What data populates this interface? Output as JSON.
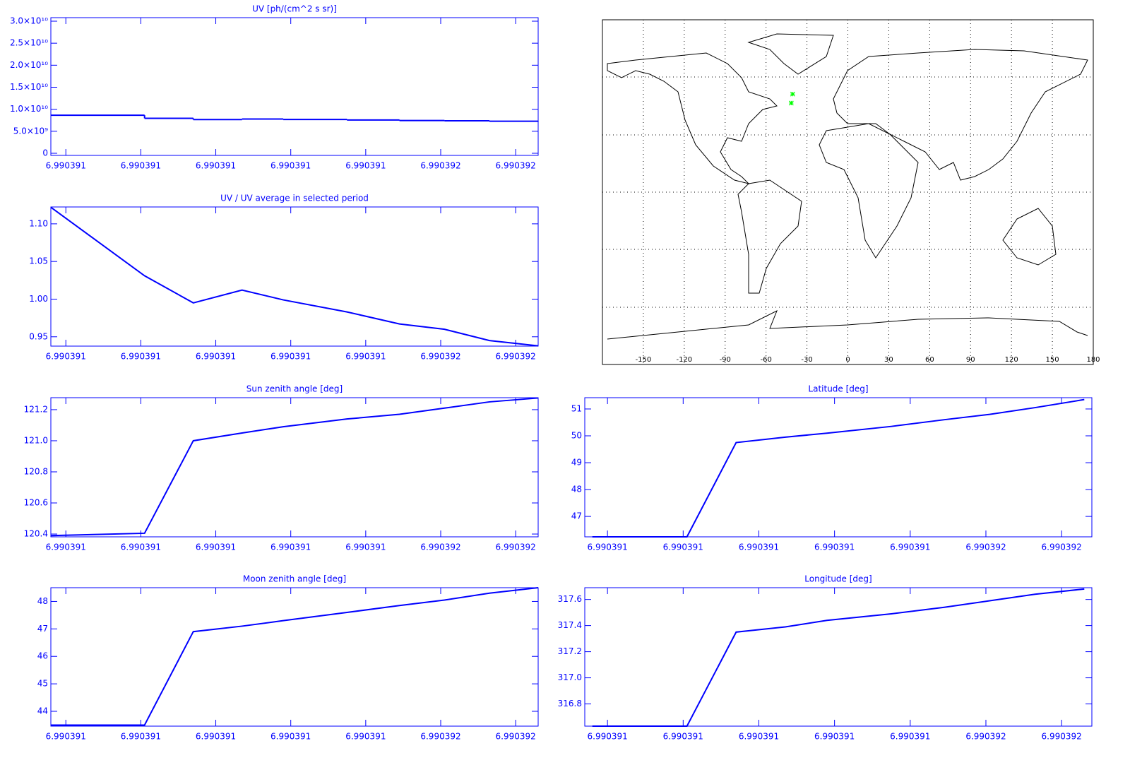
{
  "chart_data": [
    {
      "type": "line",
      "title": "UV [ph/(cm^2 s sr)]",
      "color": "#0000ff",
      "drawstyle": "steps",
      "x": [
        6.99039056,
        6.99039081,
        6.99039094,
        6.99039107,
        6.99039118,
        6.99039135,
        6.99039149,
        6.99039161,
        6.99039173,
        6.99039186
      ],
      "values": [
        8640000000,
        7940000000,
        7660000000,
        7790000000,
        7690000000,
        7570000000,
        7450000000,
        7390000000,
        7280000000,
        7220000000
      ],
      "xlim": [
        6.99039056,
        6.99039186
      ],
      "xticks": [
        {
          "value": 6.9903906,
          "label": "6.990391"
        },
        {
          "value": 6.9903908,
          "label": "6.990391"
        },
        6.990391,
        {
          "value": 6.9903912,
          "label": "6.990391"
        },
        {
          "value": 6.9903914,
          "label": "6.990391"
        },
        {
          "value": 6.9903916,
          "label": "6.990392"
        },
        {
          "value": 6.9903918,
          "label": "6.990392"
        }
      ],
      "ylim": [
        -480000000,
        30800000000
      ],
      "yticks": [
        0,
        {
          "value": 5000000000,
          "label": "5.0×10⁹"
        },
        {
          "value": 10000000000,
          "label": "1.0×10¹⁰"
        },
        {
          "value": 15000000000,
          "label": "1.5×10¹⁰"
        },
        {
          "value": 20000000000,
          "label": "2.0×10¹⁰"
        },
        {
          "value": 25000000000,
          "label": "2.5×10¹⁰"
        },
        {
          "value": 30000000000,
          "label": "3.0×10¹⁰"
        }
      ]
    },
    {
      "type": "line",
      "title": "UV / UV average in selected period",
      "color": "#0000ff",
      "x": [
        6.99039056,
        6.99039081,
        6.99039094,
        6.99039107,
        6.99039118,
        6.99039135,
        6.99039149,
        6.99039161,
        6.99039173,
        6.99039186
      ],
      "values": [
        1.122,
        1.031,
        0.995,
        1.012,
        0.999,
        0.983,
        0.967,
        0.96,
        0.945,
        0.938
      ],
      "xlim": [
        6.99039056,
        6.99039186
      ],
      "xticks": [
        {
          "value": 6.9903906,
          "label": "6.990391"
        },
        {
          "value": 6.9903908,
          "label": "6.990391"
        },
        6.990391,
        {
          "value": 6.9903912,
          "label": "6.990391"
        },
        {
          "value": 6.9903914,
          "label": "6.990391"
        },
        {
          "value": 6.9903916,
          "label": "6.990392"
        },
        {
          "value": 6.9903918,
          "label": "6.990392"
        }
      ],
      "ylim": [
        0.9376,
        1.1224
      ],
      "yticks": [
        0.95,
        {
          "value": 1,
          "label": "1.00"
        },
        1.05,
        {
          "value": 1.1,
          "label": "1.10"
        }
      ]
    },
    {
      "type": "map",
      "color": "#00ff00",
      "xlim": [
        -180,
        180
      ],
      "ylim": [
        -90,
        90
      ],
      "xticks": [
        -150,
        -120,
        -90,
        -60,
        -30,
        0,
        30,
        60,
        90,
        120,
        150,
        180
      ],
      "points": {
        "lon": [
          -40.5,
          -41.5
        ],
        "lat": [
          51.2,
          46.5
        ]
      }
    },
    {
      "type": "line",
      "title": "Sun zenith angle [deg]",
      "color": "#0000ff",
      "x": [
        6.99039056,
        6.99039081,
        6.99039094,
        6.99039107,
        6.99039118,
        6.99039135,
        6.99039149,
        6.99039161,
        6.99039173,
        6.99039186
      ],
      "values": [
        120.39,
        120.405,
        121.0,
        121.05,
        121.09,
        121.14,
        121.17,
        121.21,
        121.25,
        121.275
      ],
      "xlim": [
        6.99039056,
        6.99039186
      ],
      "xticks": [
        {
          "value": 6.9903906,
          "label": "6.990391"
        },
        {
          "value": 6.9903908,
          "label": "6.990391"
        },
        6.990391,
        {
          "value": 6.9903912,
          "label": "6.990391"
        },
        {
          "value": 6.9903914,
          "label": "6.990391"
        },
        {
          "value": 6.9903916,
          "label": "6.990392"
        },
        {
          "value": 6.9903918,
          "label": "6.990392"
        }
      ],
      "ylim": [
        120.382,
        121.277
      ],
      "yticks": [
        120.4,
        120.6,
        120.8,
        {
          "value": 121,
          "label": "121.0"
        },
        121.2
      ]
    },
    {
      "type": "line",
      "title": "Latitude [deg]",
      "color": "#0000ff",
      "x": [
        6.99039056,
        6.99039081,
        6.99039094,
        6.99039107,
        6.99039118,
        6.99039135,
        6.99039149,
        6.99039161,
        6.99039173,
        6.99039186
      ],
      "values": [
        46.24,
        46.24,
        49.75,
        49.95,
        50.1,
        50.35,
        50.6,
        50.8,
        51.05,
        51.35
      ],
      "xlim": [
        6.99039054,
        6.99039188
      ],
      "xticks": [
        {
          "value": 6.9903906,
          "label": "6.990391"
        },
        {
          "value": 6.9903908,
          "label": "6.990391"
        },
        6.990391,
        {
          "value": 6.9903912,
          "label": "6.990391"
        },
        {
          "value": 6.9903914,
          "label": "6.990391"
        },
        {
          "value": 6.9903916,
          "label": "6.990392"
        },
        {
          "value": 6.9903918,
          "label": "6.990392"
        }
      ],
      "ylim": [
        46.24,
        51.42
      ],
      "yticks": [
        47,
        48,
        49,
        50,
        51
      ]
    },
    {
      "type": "line",
      "title": "Moon zenith angle [deg]",
      "color": "#0000ff",
      "x": [
        6.99039056,
        6.99039081,
        6.99039094,
        6.99039107,
        6.99039118,
        6.99039135,
        6.99039149,
        6.99039161,
        6.99039173,
        6.99039186
      ],
      "values": [
        43.5,
        43.5,
        46.9,
        47.1,
        47.3,
        47.6,
        47.85,
        48.05,
        48.3,
        48.5
      ],
      "xlim": [
        6.99039056,
        6.99039186
      ],
      "xticks": [
        {
          "value": 6.9903906,
          "label": "6.990391"
        },
        {
          "value": 6.9903908,
          "label": "6.990391"
        },
        6.990391,
        {
          "value": 6.9903912,
          "label": "6.990391"
        },
        {
          "value": 6.9903914,
          "label": "6.990391"
        },
        {
          "value": 6.9903916,
          "label": "6.990392"
        },
        {
          "value": 6.9903918,
          "label": "6.990392"
        }
      ],
      "ylim": [
        43.46,
        48.5
      ],
      "yticks": [
        44,
        45,
        46,
        47,
        48
      ]
    },
    {
      "type": "line",
      "title": "Longitude [deg]",
      "color": "#0000ff",
      "x": [
        6.99039056,
        6.99039081,
        6.99039094,
        6.99039107,
        6.99039118,
        6.99039135,
        6.99039149,
        6.99039161,
        6.99039173,
        6.99039186
      ],
      "values": [
        316.63,
        316.63,
        317.35,
        317.39,
        317.44,
        317.49,
        317.54,
        317.59,
        317.64,
        317.68
      ],
      "xlim": [
        6.99039054,
        6.99039188
      ],
      "xticks": [
        {
          "value": 6.9903906,
          "label": "6.990391"
        },
        {
          "value": 6.9903908,
          "label": "6.990391"
        },
        6.990391,
        {
          "value": 6.9903912,
          "label": "6.990391"
        },
        {
          "value": 6.9903914,
          "label": "6.990391"
        },
        {
          "value": 6.9903916,
          "label": "6.990392"
        },
        {
          "value": 6.9903918,
          "label": "6.990392"
        }
      ],
      "ylim": [
        316.63,
        317.69
      ],
      "yticks": [
        316.8,
        {
          "value": 317,
          "label": "317.0"
        },
        317.2,
        317.4,
        317.6
      ]
    }
  ]
}
